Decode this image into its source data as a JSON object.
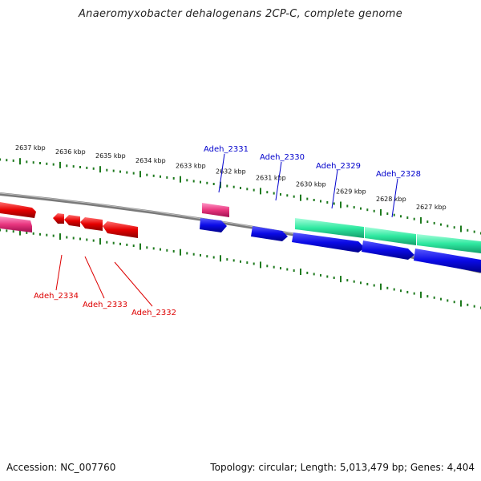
{
  "title": "Anaeromyxobacter dehalogenans 2CP-C, complete genome",
  "footer": {
    "accession": "Accession: NC_007760",
    "summary": "Topology: circular; Length: 5,013,479 bp; Genes: 4,404"
  },
  "scale": {
    "kbp_labels": [
      "2637 kbp",
      "2636 kbp",
      "2635 kbp",
      "2634 kbp",
      "2633 kbp",
      "2632 kbp",
      "2631 kbp",
      "2630 kbp",
      "2629 kbp",
      "2628 kbp",
      "2627 kbp"
    ]
  },
  "colors": {
    "backbone": "#808080",
    "ticks": "#1e7a1e",
    "forward_label": "#0000cc",
    "reverse_label": "#dd0000",
    "blue_gene": "#0a0ae6",
    "red_gene": "#e60000",
    "pink_gene": "#e8357e",
    "green_gene": "#2ee8a0"
  },
  "gene_labels": {
    "forward": [
      "Adeh_2331",
      "Adeh_2330",
      "Adeh_2329",
      "Adeh_2328"
    ],
    "reverse": [
      "Adeh_2334",
      "Adeh_2333",
      "Adeh_2332"
    ]
  }
}
